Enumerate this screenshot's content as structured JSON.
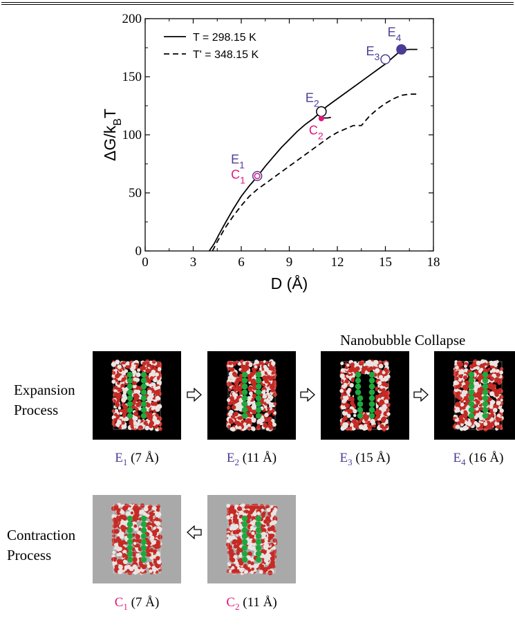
{
  "chart_data": {
    "type": "line",
    "xlabel": "D (Å)",
    "ylabel_main": "ΔG/k",
    "ylabel_sub": "B",
    "ylabel_tail": "T",
    "xlim": [
      0,
      18
    ],
    "ylim": [
      0,
      200
    ],
    "x_ticks": [
      0,
      3,
      6,
      9,
      12,
      15,
      18
    ],
    "y_ticks": [
      0,
      50,
      100,
      150,
      200
    ],
    "grid": false,
    "legend_position": "top-left",
    "series": [
      {
        "name": "T  = 298.15 K",
        "style": "solid",
        "x": [
          4.0,
          4.3,
          4.6,
          5.0,
          5.5,
          6.0,
          6.5,
          7.0,
          7.5,
          8.0,
          8.5,
          9.0,
          9.5,
          10.0,
          10.5,
          11.0,
          11.3,
          11.6,
          12.0,
          12.5,
          13.0,
          13.5,
          14.0,
          14.5,
          15.0,
          15.5,
          16.0,
          16.5,
          17.0
        ],
        "y": [
          0,
          6,
          14,
          24,
          36,
          47,
          56,
          64,
          73,
          81,
          89,
          96,
          103,
          109,
          114,
          120,
          124,
          127,
          131,
          136,
          141,
          146,
          151,
          156,
          161,
          167,
          173,
          173.5,
          173.5
        ]
      },
      {
        "name": "T' = 348.15 K",
        "style": "dashed",
        "x": [
          4.2,
          4.5,
          5.0,
          5.5,
          6.0,
          6.5,
          7.0,
          7.5,
          8.0,
          8.5,
          9.0,
          9.5,
          10.0,
          10.5,
          11.0,
          11.5,
          12.0,
          12.5,
          13.0,
          13.5,
          14.0,
          14.5,
          15.0,
          15.5,
          16.0,
          16.5,
          17.0
        ],
        "y": [
          0,
          8,
          20,
          30,
          39,
          47,
          53,
          58,
          63,
          68,
          73,
          78,
          83,
          88,
          93,
          98,
          102,
          105,
          108,
          108,
          116,
          122,
          127,
          131,
          134,
          135,
          135
        ]
      },
      {
        "name": "",
        "style": "solid",
        "x": [
          11.0,
          11.2,
          11.4,
          11.6
        ],
        "y": [
          115,
          114.5,
          114.5,
          115
        ]
      }
    ],
    "markers": [
      {
        "label": "E",
        "sub": "1",
        "x": 7.0,
        "y": 64.5,
        "kind": "double-ring",
        "color": "#4a3c96"
      },
      {
        "label": "C",
        "sub": "1",
        "x": 7.0,
        "y": 64.5,
        "kind": "ring-pink",
        "color": "#e0177e"
      },
      {
        "label": "E",
        "sub": "2",
        "x": 11.0,
        "y": 120,
        "kind": "open",
        "color": "#4a3c96"
      },
      {
        "label": "C",
        "sub": "2",
        "x": 11.0,
        "y": 114,
        "kind": "filled-pink",
        "color": "#e0177e"
      },
      {
        "label": "E",
        "sub": "3",
        "x": 15.0,
        "y": 165,
        "kind": "open",
        "color": "#4a3c96"
      },
      {
        "label": "E",
        "sub": "4",
        "x": 16.0,
        "y": 173.5,
        "kind": "filled",
        "color": "#4a3c96"
      }
    ]
  },
  "colors": {
    "expansion": "#4a3c96",
    "contraction": "#e0177e",
    "water_red": "#c62a25",
    "water_white": "#e9e4e1",
    "plate_green": "#1fa83f",
    "dark_bg": "#000000",
    "light_bg": "#a9a9a9"
  },
  "collapse_title": "Nanobubble Collapse",
  "expansion_label": [
    "Expansion",
    "Process"
  ],
  "contraction_label": [
    "Contraction",
    "Process"
  ],
  "snapshots": [
    {
      "id": "E1",
      "letter": "E",
      "sub": "1",
      "dist": " (7 Å)",
      "bg": "dark",
      "stage": "expansion",
      "icon": "water-slab-snapshot"
    },
    {
      "id": "E2",
      "letter": "E",
      "sub": "2",
      "dist": " (11 Å)",
      "bg": "dark",
      "stage": "expansion",
      "icon": "water-slab-snapshot"
    },
    {
      "id": "E3",
      "letter": "E",
      "sub": "3",
      "dist": " (15 Å)",
      "bg": "dark",
      "stage": "bubble",
      "icon": "water-slab-snapshot"
    },
    {
      "id": "E4",
      "letter": "E",
      "sub": "4",
      "dist": " (16 Å)",
      "bg": "dark",
      "stage": "collapsed",
      "icon": "water-slab-snapshot"
    },
    {
      "id": "C1",
      "letter": "C",
      "sub": "1",
      "dist": " (7 Å)",
      "bg": "light",
      "stage": "contraction",
      "icon": "water-slab-snapshot"
    },
    {
      "id": "C2",
      "letter": "C",
      "sub": "2",
      "dist": " (11 Å)",
      "bg": "light",
      "stage": "contraction",
      "icon": "water-slab-snapshot"
    }
  ],
  "arrows": [
    {
      "direction": "right",
      "icon": "right-arrow-icon"
    },
    {
      "direction": "right",
      "icon": "right-arrow-icon"
    },
    {
      "direction": "right",
      "icon": "right-arrow-icon"
    },
    {
      "direction": "left",
      "icon": "left-arrow-icon"
    }
  ]
}
